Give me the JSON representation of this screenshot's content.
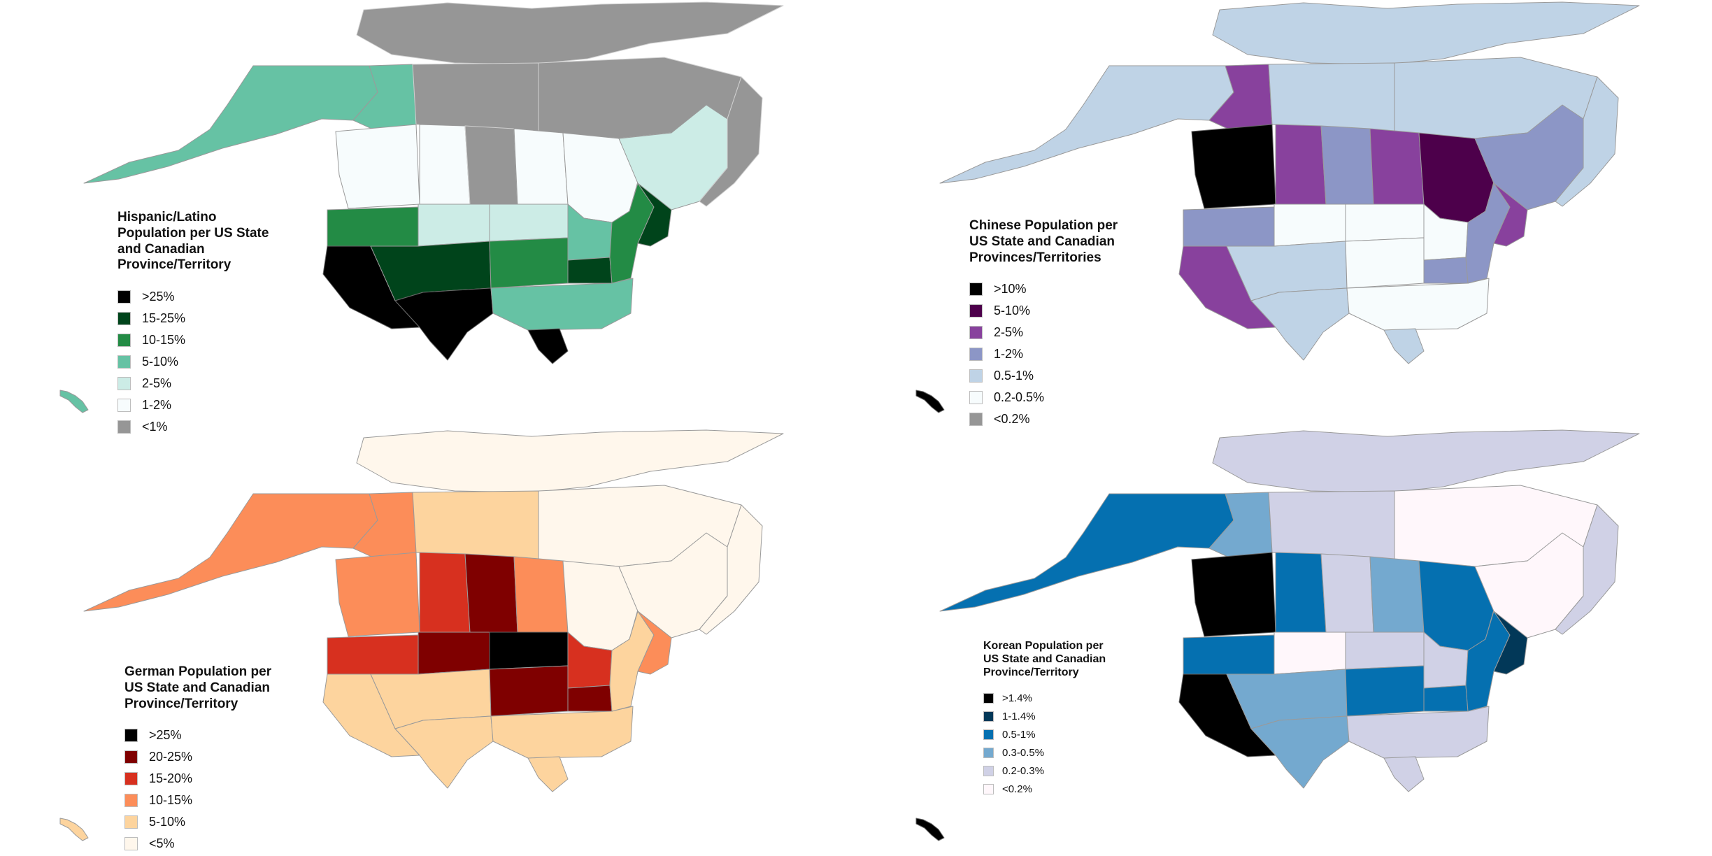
{
  "maps": [
    {
      "id": "hispanic",
      "title": "Hispanic/Latino\nPopulation per US State\nand Canadian\nProvince/Territory",
      "legend": [
        {
          "label": ">25%",
          "color": "#000000"
        },
        {
          "label": "15-25%",
          "color": "#00441b"
        },
        {
          "label": "10-15%",
          "color": "#238b45"
        },
        {
          "label": "5-10%",
          "color": "#66c2a4"
        },
        {
          "label": "2-5%",
          "color": "#ccece6"
        },
        {
          "label": "1-2%",
          "color": "#f7fcfd"
        },
        {
          "label": "<1%",
          "color": "#969696"
        }
      ],
      "region_colors": {
        "alaska": "#66c2a4",
        "hawaii": "#66c2a4",
        "yukon": "#66c2a4",
        "nwt": "#969696",
        "nunavut": "#969696",
        "arctic": "#969696",
        "bc": "#f7fcfd",
        "alberta": "#f7fcfd",
        "sask": "#969696",
        "manitoba": "#f7fcfd",
        "ontario": "#f7fcfd",
        "quebec": "#ccece6",
        "atlantic": "#969696",
        "pacific_nw": "#238b45",
        "california": "#000000",
        "mountain_n": "#ccece6",
        "southwest": "#00441b",
        "plains_n": "#ccece6",
        "plains_c": "#238b45",
        "texas": "#000000",
        "midwest": "#66c2a4",
        "illinois": "#00441b",
        "south": "#66c2a4",
        "northeast": "#238b45",
        "ny_nj": "#00441b",
        "florida": "#000000"
      }
    },
    {
      "id": "chinese",
      "title": "Chinese Population per\nUS State and Canadian\nProvinces/Territories",
      "legend": [
        {
          "label": ">10%",
          "color": "#000000"
        },
        {
          "label": "5-10%",
          "color": "#4d004b"
        },
        {
          "label": "2-5%",
          "color": "#88419d"
        },
        {
          "label": "1-2%",
          "color": "#8c96c6"
        },
        {
          "label": "0.5-1%",
          "color": "#bfd3e6"
        },
        {
          "label": "0.2-0.5%",
          "color": "#f7fcfd"
        },
        {
          "label": "<0.2%",
          "color": "#969696"
        }
      ],
      "region_colors": {
        "alaska": "#bfd3e6",
        "hawaii": "#000000",
        "yukon": "#88419d",
        "nwt": "#bfd3e6",
        "nunavut": "#bfd3e6",
        "arctic": "#bfd3e6",
        "bc": "#000000",
        "alberta": "#88419d",
        "sask": "#8c96c6",
        "manitoba": "#88419d",
        "ontario": "#4d004b",
        "quebec": "#8c96c6",
        "atlantic": "#bfd3e6",
        "pacific_nw": "#8c96c6",
        "california": "#88419d",
        "mountain_n": "#f7fcfd",
        "southwest": "#bfd3e6",
        "plains_n": "#f7fcfd",
        "plains_c": "#f7fcfd",
        "texas": "#bfd3e6",
        "midwest": "#f7fcfd",
        "illinois": "#8c96c6",
        "south": "#f7fcfd",
        "northeast": "#8c96c6",
        "ny_nj": "#88419d",
        "florida": "#bfd3e6"
      }
    },
    {
      "id": "german",
      "title": "German Population per\nUS State and Canadian\nProvince/Territory",
      "legend": [
        {
          "label": ">25%",
          "color": "#000000"
        },
        {
          "label": "20-25%",
          "color": "#7f0000"
        },
        {
          "label": "15-20%",
          "color": "#d7301f"
        },
        {
          "label": "10-15%",
          "color": "#fc8d59"
        },
        {
          "label": "5-10%",
          "color": "#fdd49e"
        },
        {
          "label": "<5%",
          "color": "#fff7ec"
        }
      ],
      "region_colors": {
        "alaska": "#fc8d59",
        "hawaii": "#fdd49e",
        "yukon": "#fc8d59",
        "nwt": "#fdd49e",
        "nunavut": "#fff7ec",
        "arctic": "#fff7ec",
        "bc": "#fc8d59",
        "alberta": "#d7301f",
        "sask": "#7f0000",
        "manitoba": "#fc8d59",
        "ontario": "#fff7ec",
        "quebec": "#fff7ec",
        "atlantic": "#fff7ec",
        "pacific_nw": "#d7301f",
        "california": "#fdd49e",
        "mountain_n": "#7f0000",
        "southwest": "#fdd49e",
        "plains_n": "#000000",
        "plains_c": "#7f0000",
        "texas": "#fdd49e",
        "midwest": "#d7301f",
        "illinois": "#7f0000",
        "south": "#fdd49e",
        "northeast": "#fdd49e",
        "ny_nj": "#fc8d59",
        "florida": "#fdd49e"
      }
    },
    {
      "id": "korean",
      "title": "Korean Population per\nUS State and Canadian\nProvince/Territory",
      "legend": [
        {
          "label": ">1.4%",
          "color": "#000000"
        },
        {
          "label": "1-1.4%",
          "color": "#023858"
        },
        {
          "label": "0.5-1%",
          "color": "#0570b0"
        },
        {
          "label": "0.3-0.5%",
          "color": "#74a9cf"
        },
        {
          "label": "0.2-0.3%",
          "color": "#d0d1e6"
        },
        {
          "label": "<0.2%",
          "color": "#fff7fb"
        }
      ],
      "region_colors": {
        "alaska": "#0570b0",
        "hawaii": "#000000",
        "yukon": "#74a9cf",
        "nwt": "#d0d1e6",
        "nunavut": "#fff7fb",
        "arctic": "#d0d1e6",
        "bc": "#000000",
        "alberta": "#0570b0",
        "sask": "#d0d1e6",
        "manitoba": "#74a9cf",
        "ontario": "#0570b0",
        "quebec": "#fff7fb",
        "atlantic": "#d0d1e6",
        "pacific_nw": "#0570b0",
        "california": "#000000",
        "mountain_n": "#fff7fb",
        "southwest": "#74a9cf",
        "plains_n": "#d0d1e6",
        "plains_c": "#0570b0",
        "texas": "#74a9cf",
        "midwest": "#d0d1e6",
        "illinois": "#0570b0",
        "south": "#d0d1e6",
        "northeast": "#0570b0",
        "ny_nj": "#023858",
        "florida": "#d0d1e6"
      }
    }
  ]
}
